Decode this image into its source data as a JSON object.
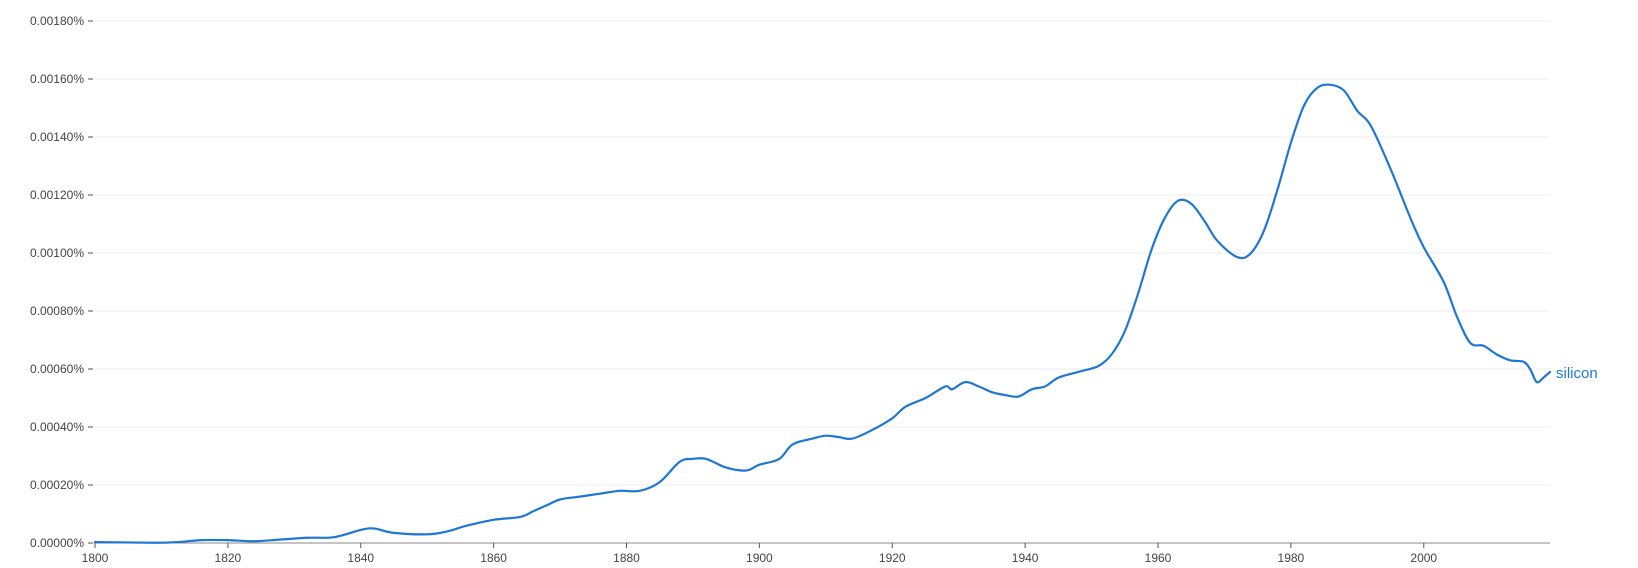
{
  "chart_data": {
    "type": "line",
    "title": "",
    "xlabel": "",
    "ylabel": "",
    "xlim": [
      1800,
      2019
    ],
    "ylim": [
      0,
      0.0018
    ],
    "grid": true,
    "legend": "inline-end-label",
    "x_ticks": [
      1800,
      1820,
      1840,
      1860,
      1880,
      1900,
      1920,
      1940,
      1960,
      1980,
      2000
    ],
    "x_tick_labels": [
      "1800",
      "1820",
      "1840",
      "1860",
      "1880",
      "1900",
      "1920",
      "1940",
      "1960",
      "1980",
      "2000"
    ],
    "y_ticks": [
      0,
      0.0002,
      0.0004,
      0.0006,
      0.0008,
      0.001,
      0.0012,
      0.0014,
      0.0016,
      0.0018
    ],
    "y_tick_labels": [
      "0.00000%",
      "0.00020%",
      "0.00040%",
      "0.00060%",
      "0.00080%",
      "0.00100%",
      "0.00120%",
      "0.00140%",
      "0.00160%",
      "0.00180%"
    ],
    "series": [
      {
        "name": "silicon",
        "color": "#1f77d4",
        "points": [
          [
            1800,
            3e-06
          ],
          [
            1805,
            2e-06
          ],
          [
            1810,
            1e-06
          ],
          [
            1813,
            4e-06
          ],
          [
            1816,
            1e-05
          ],
          [
            1820,
            1e-05
          ],
          [
            1824,
            6e-06
          ],
          [
            1828,
            1.2e-05
          ],
          [
            1832,
            1.8e-05
          ],
          [
            1836,
            2e-05
          ],
          [
            1840,
            4.5e-05
          ],
          [
            1842,
            5e-05
          ],
          [
            1845,
            3.5e-05
          ],
          [
            1850,
            3e-05
          ],
          [
            1853,
            4e-05
          ],
          [
            1856,
            6e-05
          ],
          [
            1860,
            8e-05
          ],
          [
            1864,
            9e-05
          ],
          [
            1866,
            0.00011
          ],
          [
            1868,
            0.00013
          ],
          [
            1870,
            0.00015
          ],
          [
            1873,
            0.00016
          ],
          [
            1876,
            0.00017
          ],
          [
            1879,
            0.00018
          ],
          [
            1882,
            0.00018
          ],
          [
            1885,
            0.00021
          ],
          [
            1888,
            0.00028
          ],
          [
            1890,
            0.00029
          ],
          [
            1892,
            0.00029
          ],
          [
            1895,
            0.00026
          ],
          [
            1898,
            0.00025
          ],
          [
            1900,
            0.00027
          ],
          [
            1903,
            0.00029
          ],
          [
            1905,
            0.00034
          ],
          [
            1908,
            0.00036
          ],
          [
            1910,
            0.00037
          ],
          [
            1912,
            0.000365
          ],
          [
            1914,
            0.00036
          ],
          [
            1917,
            0.00039
          ],
          [
            1920,
            0.00043
          ],
          [
            1922,
            0.00047
          ],
          [
            1925,
            0.0005
          ],
          [
            1928,
            0.00054
          ],
          [
            1929,
            0.00053
          ],
          [
            1931,
            0.000555
          ],
          [
            1933,
            0.00054
          ],
          [
            1935,
            0.00052
          ],
          [
            1937,
            0.00051
          ],
          [
            1939,
            0.000505
          ],
          [
            1941,
            0.00053
          ],
          [
            1943,
            0.00054
          ],
          [
            1945,
            0.00057
          ],
          [
            1948,
            0.00059
          ],
          [
            1951,
            0.00061
          ],
          [
            1953,
            0.00065
          ],
          [
            1955,
            0.00073
          ],
          [
            1957,
            0.00086
          ],
          [
            1959,
            0.00101
          ],
          [
            1961,
            0.00112
          ],
          [
            1963,
            0.00118
          ],
          [
            1965,
            0.00117
          ],
          [
            1967,
            0.00111
          ],
          [
            1969,
            0.00104
          ],
          [
            1972,
            0.000985
          ],
          [
            1974,
            0.001
          ],
          [
            1976,
            0.00108
          ],
          [
            1978,
            0.00122
          ],
          [
            1980,
            0.00138
          ],
          [
            1982,
            0.00151
          ],
          [
            1984,
            0.00157
          ],
          [
            1986,
            0.00158
          ],
          [
            1988,
            0.00156
          ],
          [
            1990,
            0.00149
          ],
          [
            1992,
            0.00144
          ],
          [
            1995,
            0.00129
          ],
          [
            1998,
            0.00112
          ],
          [
            2000,
            0.00102
          ],
          [
            2003,
            0.0009
          ],
          [
            2005,
            0.00078
          ],
          [
            2007,
            0.00069
          ],
          [
            2009,
            0.00068
          ],
          [
            2011,
            0.00065
          ],
          [
            2013,
            0.00063
          ],
          [
            2015,
            0.000625
          ],
          [
            2016,
            0.0006
          ],
          [
            2017,
            0.000555
          ],
          [
            2018,
            0.00057
          ],
          [
            2019,
            0.00059
          ]
        ]
      }
    ]
  }
}
